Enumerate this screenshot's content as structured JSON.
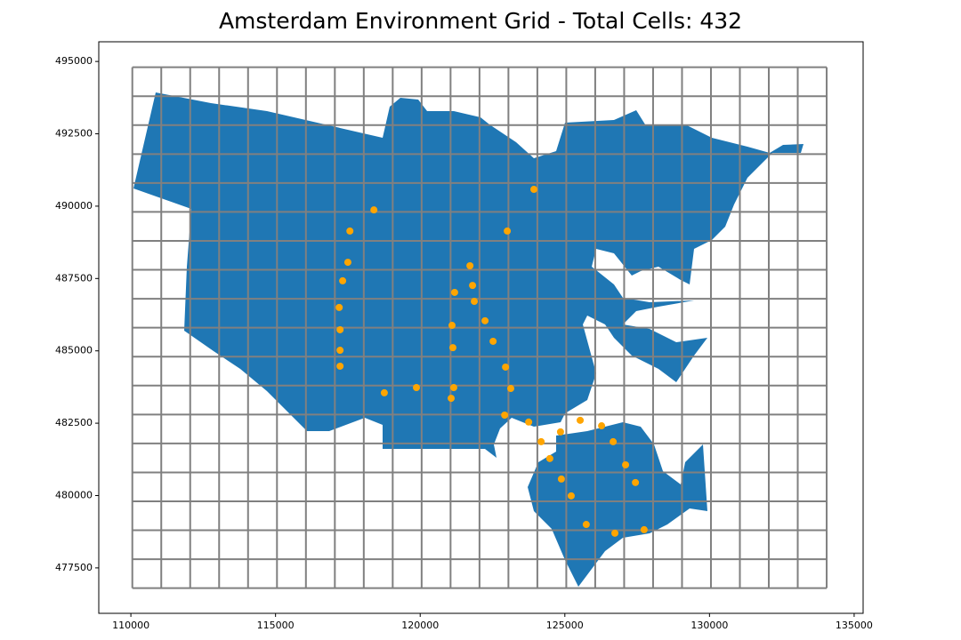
{
  "chart_data": {
    "type": "map",
    "title": "Amsterdam Environment Grid - Total Cells: 432",
    "xlim": [
      108890,
      135310
    ],
    "ylim": [
      475930,
      495680
    ],
    "xticks": [
      110000,
      115000,
      120000,
      125000,
      130000,
      135000
    ],
    "yticks": [
      477500,
      480000,
      482500,
      485000,
      487500,
      490000,
      492500,
      495000
    ],
    "cell_edges_x": [
      110050,
      111050,
      112050,
      113050,
      114050,
      115050,
      116050,
      117050,
      118050,
      119050,
      120050,
      121050,
      122050,
      123050,
      124050,
      125050,
      126050,
      127050,
      128050,
      129050,
      130050,
      131050,
      132050,
      133050,
      134050
    ],
    "cell_edges_y": [
      476800,
      477800,
      478800,
      479800,
      480800,
      481800,
      482800,
      483800,
      484800,
      485800,
      486800,
      487800,
      488800,
      489800,
      490800,
      491800,
      492800,
      493800,
      494800
    ],
    "grid_color": "#808080",
    "area_color": "#1f77b4",
    "series": [
      {
        "color": "#ffa500",
        "x": [
          123930,
          118400,
          117570,
          123010,
          117500,
          121720,
          117320,
          121810,
          121190,
          121870,
          117200,
          122240,
          117230,
          121100,
          122520,
          117230,
          121130,
          122950,
          117230,
          121160,
          123130,
          119870,
          118760,
          121070,
          122920,
          123750,
          125530,
          126270,
          124850,
          124180,
          126670,
          124480,
          127100,
          124880,
          127440,
          125220,
          125740,
          126730,
          127740
        ],
        "y": [
          490580,
          489870,
          489140,
          489140,
          488060,
          487940,
          487420,
          487260,
          487020,
          486710,
          486500,
          486040,
          485730,
          485880,
          485330,
          485020,
          485110,
          484440,
          484470,
          483730,
          483700,
          483730,
          483550,
          483360,
          482780,
          482540,
          482600,
          482410,
          482200,
          481860,
          481860,
          481280,
          481060,
          480570,
          480450,
          479990,
          479000,
          478700,
          478820
        ]
      }
    ]
  }
}
